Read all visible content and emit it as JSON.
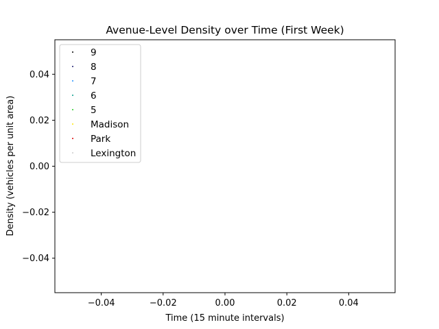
{
  "chart_data": {
    "type": "scatter",
    "title": "Avenue-Level Density over Time (First Week)",
    "xlabel": "Time (15 minute intervals)",
    "ylabel": "Density (vehicles per unit area)",
    "xlim": [
      -0.055,
      0.055
    ],
    "ylim": [
      -0.055,
      0.055
    ],
    "xticks": [
      -0.04,
      -0.02,
      0.0,
      0.02,
      0.04
    ],
    "xtick_labels": [
      "−0.04",
      "−0.02",
      "0.00",
      "0.02",
      "0.04"
    ],
    "yticks": [
      -0.04,
      -0.02,
      0.0,
      0.02,
      0.04
    ],
    "ytick_labels": [
      "−0.04",
      "−0.02",
      "0.00",
      "0.02",
      "0.04"
    ],
    "grid": false,
    "legend_position": "top-left",
    "series": [
      {
        "name": "9",
        "color": "#000000",
        "x": [],
        "y": []
      },
      {
        "name": "8",
        "color": "#1a1a6e",
        "x": [],
        "y": []
      },
      {
        "name": "7",
        "color": "#1e90ff",
        "x": [],
        "y": []
      },
      {
        "name": "6",
        "color": "#009a8a",
        "x": [],
        "y": []
      },
      {
        "name": "5",
        "color": "#22cc22",
        "x": [],
        "y": []
      },
      {
        "name": "Madison",
        "color": "#ffe600",
        "x": [],
        "y": []
      },
      {
        "name": "Park",
        "color": "#dd0000",
        "x": [],
        "y": []
      },
      {
        "name": "Lexington",
        "color": "#cccccc",
        "x": [],
        "y": []
      }
    ]
  }
}
